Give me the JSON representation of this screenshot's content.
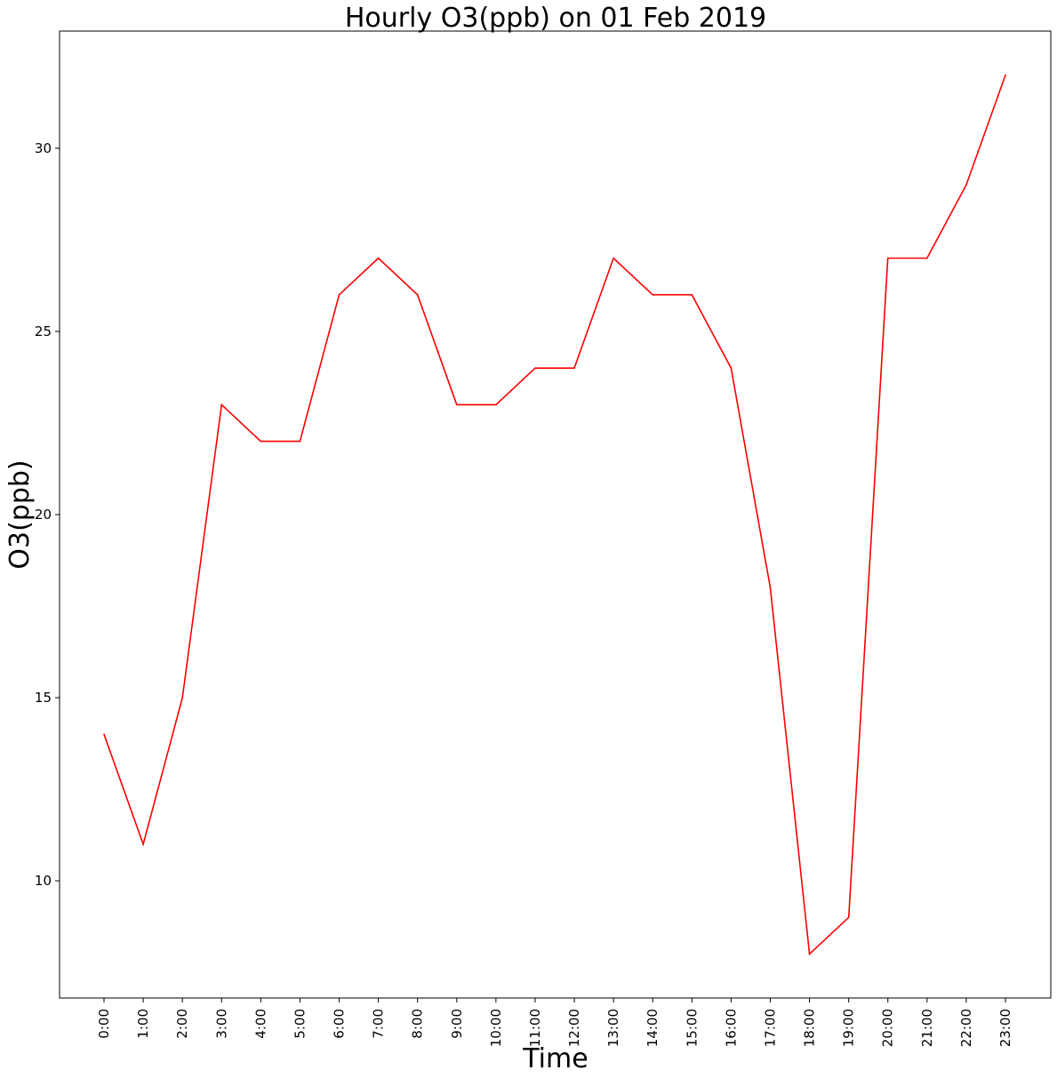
{
  "chart_data": {
    "type": "line",
    "title": "Hourly O3(ppb) on 01 Feb 2019",
    "xlabel": "Time",
    "ylabel": "O3(ppb)",
    "categories": [
      "0:00",
      "1:00",
      "2:00",
      "3:00",
      "4:00",
      "5:00",
      "6:00",
      "7:00",
      "8:00",
      "9:00",
      "10:00",
      "11:00",
      "12:00",
      "13:00",
      "14:00",
      "15:00",
      "16:00",
      "17:00",
      "18:00",
      "19:00",
      "20:00",
      "21:00",
      "22:00",
      "23:00"
    ],
    "series": [
      {
        "color": "#ff0000",
        "values": [
          14,
          11,
          15,
          23,
          22,
          22,
          26,
          27,
          26,
          23,
          23,
          24,
          24,
          27,
          26,
          26,
          24,
          18,
          8,
          9,
          27,
          27,
          29,
          32
        ]
      }
    ],
    "yticks": [
      10,
      15,
      20,
      25,
      30
    ],
    "ylim": [
      6.8,
      33.2
    ],
    "grid": false,
    "legend": "none"
  }
}
